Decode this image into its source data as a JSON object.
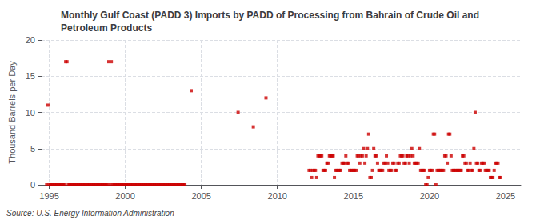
{
  "chart_data": {
    "type": "scatter",
    "title": "Monthly Gulf Coast (PADD 3) Imports by PADD of Processing from Bahrain of Crude Oil and\nPetroleum Products",
    "ylabel": "Thousand Barrels per Day",
    "annotations": [
      "Source: U.S. Energy Information Administration"
    ],
    "color": "#cc0000",
    "marker": "square",
    "grid": true,
    "xlim": [
      1994.5,
      2026.0
    ],
    "xticks": [
      1995,
      2000,
      2005,
      2010,
      2015,
      2020,
      2025
    ],
    "ylim": [
      0,
      20
    ],
    "yticks": [
      0,
      5,
      10,
      15,
      20
    ],
    "x": [
      1994.917,
      1996.083,
      1996.167,
      1998.917,
      1999.083,
      1994.833,
      1995.0,
      1995.083,
      1995.167,
      1995.25,
      1995.333,
      1995.417,
      1995.5,
      1995.583,
      1995.667,
      1995.75,
      1995.833,
      1995.917,
      1996.0,
      1996.25,
      1996.333,
      1996.417,
      1996.5,
      1996.583,
      1996.667,
      1996.75,
      1996.833,
      1996.917,
      1997.0,
      1997.083,
      1997.167,
      1997.25,
      1997.333,
      1997.417,
      1997.5,
      1997.583,
      1997.667,
      1997.75,
      1997.833,
      1997.917,
      1998.0,
      1998.083,
      1998.167,
      1998.25,
      1998.333,
      1998.417,
      1998.5,
      1998.583,
      1998.667,
      1998.75,
      1998.833,
      1999.0,
      1999.167,
      1999.25,
      1999.333,
      1999.417,
      1999.5,
      1999.583,
      1999.667,
      1999.75,
      1999.833,
      1999.917,
      2000.0,
      2000.083,
      2000.167,
      2000.25,
      2000.333,
      2000.417,
      2000.5,
      2000.583,
      2000.667,
      2000.75,
      2000.833,
      2000.917,
      2001.0,
      2001.083,
      2001.167,
      2001.25,
      2001.333,
      2001.417,
      2001.5,
      2001.583,
      2001.667,
      2001.75,
      2001.833,
      2001.917,
      2002.0,
      2002.083,
      2002.167,
      2002.25,
      2002.333,
      2002.417,
      2002.5,
      2002.583,
      2002.667,
      2002.75,
      2002.833,
      2002.917,
      2003.0,
      2003.083,
      2003.167,
      2003.25,
      2003.333,
      2003.417,
      2003.5,
      2003.583,
      2003.667,
      2003.75,
      2003.833,
      2003.917,
      2004.333,
      2007.417,
      2008.417,
      2009.25,
      2012.083,
      2012.167,
      2012.25,
      2012.333,
      2012.417,
      2012.5,
      2012.583,
      2012.667,
      2012.75,
      2012.833,
      2012.917,
      2013.0,
      2013.083,
      2013.167,
      2013.25,
      2013.333,
      2013.417,
      2013.5,
      2013.583,
      2013.667,
      2013.75,
      2013.833,
      2013.917,
      2014.0,
      2014.083,
      2014.167,
      2014.25,
      2014.333,
      2014.417,
      2014.5,
      2014.583,
      2014.667,
      2014.75,
      2014.833,
      2014.917,
      2015.0,
      2015.083,
      2015.167,
      2015.25,
      2015.333,
      2015.417,
      2015.5,
      2015.583,
      2015.667,
      2015.75,
      2015.833,
      2015.917,
      2016.0,
      2016.083,
      2016.167,
      2016.25,
      2016.333,
      2016.417,
      2016.5,
      2016.583,
      2016.667,
      2016.75,
      2016.833,
      2016.917,
      2017.0,
      2017.083,
      2017.167,
      2017.25,
      2017.333,
      2017.417,
      2017.5,
      2017.583,
      2017.667,
      2017.75,
      2017.833,
      2017.917,
      2018.0,
      2018.083,
      2018.167,
      2018.25,
      2018.333,
      2018.417,
      2018.5,
      2018.583,
      2018.667,
      2018.75,
      2018.833,
      2018.917,
      2019.0,
      2019.083,
      2019.167,
      2019.25,
      2019.333,
      2019.417,
      2019.5,
      2019.583,
      2019.667,
      2019.75,
      2019.833,
      2019.917,
      2020.0,
      2020.083,
      2020.167,
      2020.25,
      2020.333,
      2020.417,
      2020.5,
      2020.583,
      2020.667,
      2020.75,
      2020.833,
      2020.917,
      2021.0,
      2021.083,
      2021.167,
      2021.25,
      2021.333,
      2021.417,
      2021.5,
      2021.583,
      2021.667,
      2021.75,
      2021.833,
      2021.917,
      2022.0,
      2022.083,
      2022.167,
      2022.25,
      2022.333,
      2022.417,
      2022.5,
      2022.583,
      2022.667,
      2022.75,
      2022.833,
      2022.917,
      2023.0,
      2023.083,
      2023.167,
      2023.25,
      2023.333,
      2023.417,
      2023.5,
      2023.583,
      2023.667,
      2023.75,
      2023.833,
      2023.917,
      2024.0,
      2024.083,
      2024.167,
      2024.25,
      2024.333,
      2024.417,
      2024.5,
      2024.583,
      2024.667
    ],
    "values": [
      11,
      17,
      17,
      17,
      17,
      0,
      0,
      0,
      0,
      0,
      0,
      0,
      0,
      0,
      0,
      0,
      0,
      0,
      0,
      0,
      0,
      0,
      0,
      0,
      0,
      0,
      0,
      0,
      0,
      0,
      0,
      0,
      0,
      0,
      0,
      0,
      0,
      0,
      0,
      0,
      0,
      0,
      0,
      0,
      0,
      0,
      0,
      0,
      0,
      0,
      0,
      0,
      0,
      0,
      0,
      0,
      0,
      0,
      0,
      0,
      0,
      0,
      0,
      0,
      0,
      0,
      0,
      0,
      0,
      0,
      0,
      0,
      0,
      0,
      0,
      0,
      0,
      0,
      0,
      0,
      0,
      0,
      0,
      0,
      0,
      0,
      0,
      0,
      0,
      0,
      0,
      0,
      0,
      0,
      0,
      0,
      0,
      0,
      0,
      0,
      0,
      0,
      0,
      0,
      0,
      0,
      0,
      0,
      0,
      0,
      13,
      10,
      8,
      12,
      2,
      2,
      1,
      2,
      2,
      2,
      1,
      4,
      4,
      4,
      4,
      2,
      2,
      2,
      3,
      3,
      4,
      4,
      4,
      4,
      1,
      2,
      2,
      2,
      2,
      2,
      3,
      3,
      3,
      4,
      3,
      3,
      2,
      2,
      2,
      2,
      2,
      2,
      4,
      4,
      3,
      4,
      4,
      5,
      3,
      4,
      5,
      7,
      1,
      1,
      2,
      5,
      4,
      4,
      3,
      2,
      2,
      2,
      2,
      3,
      3,
      4,
      3,
      2,
      2,
      2,
      3,
      3,
      2,
      2,
      3,
      3,
      4,
      4,
      4,
      3,
      3,
      4,
      4,
      3,
      4,
      5,
      4,
      3,
      3,
      3,
      3,
      5,
      2,
      2,
      2,
      2,
      0,
      0,
      1,
      2,
      2,
      2,
      7,
      7,
      0,
      2,
      2,
      2,
      2,
      2,
      2,
      4,
      4,
      3,
      7,
      7,
      4,
      2,
      2,
      2,
      2,
      2,
      2,
      2,
      2,
      4,
      4,
      3,
      3,
      2,
      2,
      3,
      2,
      2,
      5,
      10,
      3,
      3,
      2,
      2,
      3,
      3,
      3,
      2,
      2,
      2,
      2,
      1,
      1,
      1,
      2,
      3,
      3,
      3,
      1,
      1
    ]
  }
}
